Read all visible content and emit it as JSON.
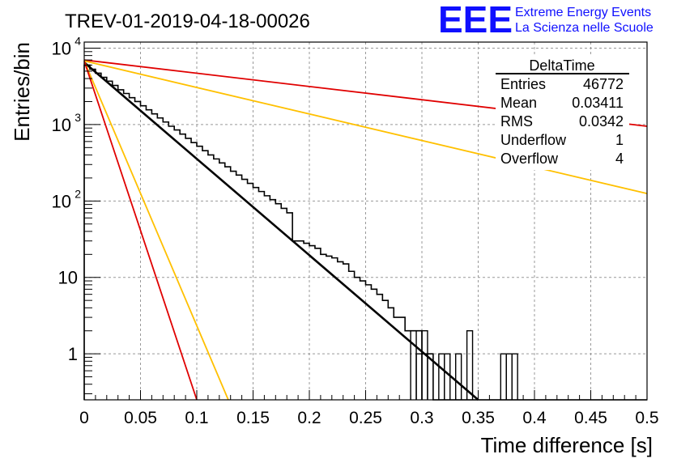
{
  "header": {
    "run_title": "TREV-01-2019-04-18-00026",
    "logo_text": "EEE",
    "logo_line1": "Extreme Energy Events",
    "logo_line2": "La Scienza nelle Scuole"
  },
  "stats_box": {
    "title": "DeltaTime",
    "rows": [
      {
        "label": "Entries",
        "value": "46772"
      },
      {
        "label": "Mean",
        "value": "0.03411"
      },
      {
        "label": "RMS",
        "value": "0.0342"
      },
      {
        "label": "Underflow",
        "value": "1"
      },
      {
        "label": "Overflow",
        "value": "4"
      }
    ]
  },
  "colors": {
    "histogram": "#000000",
    "fit": "#000000",
    "red_line": "#e00000",
    "orange_line": "#ffc000",
    "grid": "#999999",
    "logo": "#1010ff"
  },
  "chart_data": {
    "type": "histogram",
    "xlabel": "Time difference [s]",
    "ylabel": "Entries/bin",
    "xlim": [
      0,
      0.5
    ],
    "ylim": [
      0.25,
      12000
    ],
    "yscale": "log",
    "grid": true,
    "x_ticks": [
      "0",
      "0.05",
      "0.1",
      "0.15",
      "0.2",
      "0.25",
      "0.3",
      "0.35",
      "0.4",
      "0.45",
      "0.5"
    ],
    "y_ticks": [
      {
        "value": 1,
        "label": "1"
      },
      {
        "value": 10,
        "label": "10"
      },
      {
        "value": 100,
        "label": "10",
        "exp": "2"
      },
      {
        "value": 1000,
        "label": "10",
        "exp": "3"
      },
      {
        "value": 10000,
        "label": "10",
        "exp": "4"
      }
    ],
    "histogram": {
      "bin_width": 0.005,
      "values": [
        6000,
        5300,
        4700,
        4150,
        3700,
        3250,
        2850,
        2550,
        2250,
        2000,
        1760,
        1560,
        1380,
        1220,
        1080,
        950,
        850,
        750,
        660,
        580,
        520,
        455,
        400,
        355,
        315,
        280,
        245,
        218,
        192,
        170,
        150,
        133,
        117,
        104,
        92,
        80,
        70,
        30,
        30,
        28,
        26,
        24,
        20,
        19,
        18,
        16,
        15,
        12,
        10,
        9,
        8,
        7,
        6,
        5,
        4,
        3,
        3,
        2,
        2,
        2,
        1,
        1,
        0,
        0,
        0,
        0,
        0,
        0,
        0,
        0,
        0,
        0,
        0,
        0,
        0,
        0,
        0,
        0,
        0,
        0,
        0,
        0,
        0,
        0,
        0,
        0,
        0,
        0,
        0,
        0,
        0,
        0,
        0,
        0,
        0,
        0,
        0,
        0,
        0,
        0
      ]
    },
    "sparse_bins": [
      {
        "x_low": 0.29,
        "value": 2
      },
      {
        "x_low": 0.295,
        "value": 1
      },
      {
        "x_low": 0.3,
        "value": 1
      },
      {
        "x_low": 0.3,
        "value": 2
      },
      {
        "x_low": 0.315,
        "value": 1
      },
      {
        "x_low": 0.32,
        "value": 1
      },
      {
        "x_low": 0.33,
        "value": 1
      },
      {
        "x_low": 0.34,
        "value": 2
      },
      {
        "x_low": 0.37,
        "value": 1
      },
      {
        "x_low": 0.375,
        "value": 1
      },
      {
        "x_low": 0.38,
        "value": 1
      }
    ],
    "lines": [
      {
        "color_key": "fit",
        "x": [
          0,
          0.35
        ],
        "y": [
          6500,
          0.25
        ]
      },
      {
        "color_key": "red_line",
        "x": [
          0,
          0.5
        ],
        "y": [
          7000,
          950
        ]
      },
      {
        "color_key": "orange_line",
        "x": [
          0,
          0.5
        ],
        "y": [
          6800,
          125
        ]
      },
      {
        "color_key": "orange_line",
        "x": [
          0,
          0.128
        ],
        "y": [
          6800,
          0.25
        ]
      },
      {
        "color_key": "red_line",
        "x": [
          0,
          0.1
        ],
        "y": [
          6800,
          0.25
        ]
      }
    ]
  }
}
